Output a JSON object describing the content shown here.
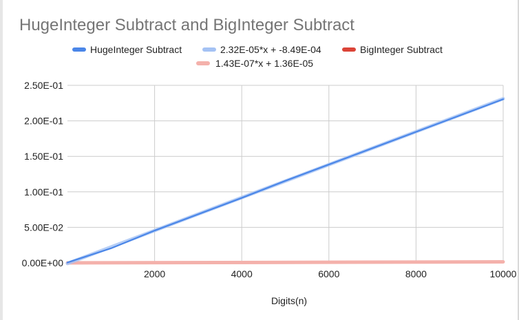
{
  "chart_data": {
    "type": "line",
    "title": "HugeInteger Subtract and BigInteger Subtract",
    "xlabel": "Digits(n)",
    "ylabel": "",
    "xlim": [
      0,
      10000
    ],
    "ylim": [
      0,
      0.25
    ],
    "x_ticks": [
      2000,
      4000,
      6000,
      8000,
      10000
    ],
    "x_tick_labels": [
      "2000",
      "4000",
      "6000",
      "8000",
      "10000"
    ],
    "y_ticks": [
      0,
      0.05,
      0.1,
      0.15,
      0.2,
      0.25
    ],
    "y_tick_labels": [
      "0.00E+00",
      "5.00E-02",
      "1.00E-01",
      "1.50E-01",
      "2.00E-01",
      "2.50E-01"
    ],
    "grid": true,
    "legend_position": "top",
    "series": [
      {
        "name": "HugeInteger Subtract",
        "color": "#4a86e8",
        "x": [
          0,
          1000,
          2000,
          3000,
          4000,
          5000,
          6000,
          7000,
          8000,
          9000,
          10000
        ],
        "y": [
          0.0005,
          0.0205,
          0.0455,
          0.0685,
          0.0915,
          0.1155,
          0.1385,
          0.1615,
          0.1845,
          0.2075,
          0.2305
        ]
      },
      {
        "name": "2.32E-05*x + -8.49E-04",
        "color": "#a4c2f4",
        "trendline": {
          "slope": 2.32e-05,
          "intercept": -0.000849
        },
        "x": [
          0,
          10000
        ],
        "y": [
          -0.000849,
          0.231151
        ]
      },
      {
        "name": "BigInteger Subtract",
        "color": "#db4437",
        "x": [
          0,
          1000,
          2000,
          3000,
          4000,
          5000,
          6000,
          7000,
          8000,
          9000,
          10000
        ],
        "y": [
          0.0,
          0.0002,
          0.0003,
          0.0005,
          0.0006,
          0.0008,
          0.0009,
          0.001,
          0.0012,
          0.0013,
          0.0014
        ]
      },
      {
        "name": "1.43E-07*x + 1.36E-05",
        "color": "#f4b1ab",
        "trendline": {
          "slope": 1.43e-07,
          "intercept": 1.36e-05
        },
        "x": [
          0,
          10000
        ],
        "y": [
          1.36e-05,
          0.0014436
        ]
      }
    ]
  }
}
